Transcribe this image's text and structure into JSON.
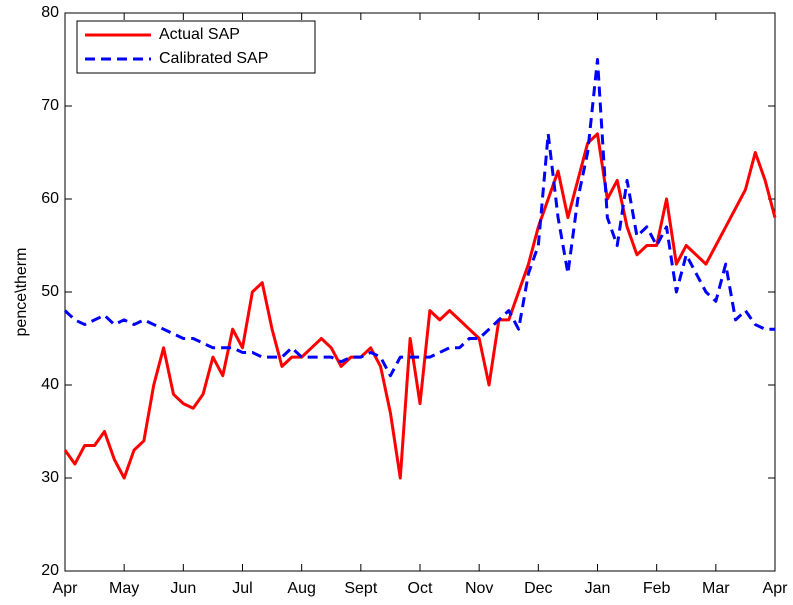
{
  "chart_data": {
    "type": "line",
    "ylabel": "pence\\therm",
    "categories": [
      "Apr",
      null,
      null,
      null,
      null,
      null,
      "May",
      null,
      null,
      null,
      null,
      null,
      "Jun",
      null,
      null,
      null,
      null,
      null,
      "Jul",
      null,
      null,
      null,
      null,
      null,
      "Aug",
      null,
      null,
      null,
      null,
      null,
      "Sept",
      null,
      null,
      null,
      null,
      null,
      "Oct",
      null,
      null,
      null,
      null,
      null,
      "Nov",
      null,
      null,
      null,
      null,
      null,
      "Dec",
      null,
      null,
      null,
      null,
      null,
      "Jan",
      null,
      null,
      null,
      null,
      null,
      "Feb",
      null,
      null,
      null,
      null,
      null,
      "Mar",
      null,
      null,
      null,
      null,
      null,
      "Apr"
    ],
    "series": [
      {
        "name": "Actual SAP",
        "color": "#ff0000",
        "dashed": false,
        "values": [
          33,
          31.5,
          33.5,
          33.5,
          35,
          32,
          30,
          33,
          34,
          40,
          44,
          39,
          38,
          37.5,
          39,
          43,
          41,
          46,
          44,
          50,
          51,
          46,
          42,
          43,
          43,
          44,
          45,
          44,
          42,
          43,
          43,
          44,
          42,
          37,
          30,
          45,
          38,
          48,
          47,
          48,
          47,
          46,
          45,
          40,
          47,
          47,
          50,
          53,
          57,
          60,
          63,
          58,
          62,
          66,
          67,
          60,
          62,
          57,
          54,
          55,
          55,
          60,
          53,
          55,
          54,
          53,
          55,
          57,
          59,
          61,
          65,
          62,
          58
        ]
      },
      {
        "name": "Calibrated SAP",
        "color": "#0000ff",
        "dashed": true,
        "values": [
          48,
          47,
          46.5,
          47,
          47.5,
          46.5,
          47,
          46.5,
          47,
          46.5,
          46,
          45.5,
          45,
          45,
          44.5,
          44,
          44,
          44,
          43.5,
          43.5,
          43,
          43,
          43,
          44,
          43,
          43,
          43,
          43,
          42.5,
          43,
          43,
          43.5,
          43,
          41,
          43,
          43,
          43,
          43,
          43.5,
          44,
          44,
          45,
          45,
          46,
          47,
          48,
          46,
          52,
          55,
          67,
          58,
          52,
          60,
          65,
          75,
          58,
          55,
          62,
          56,
          57,
          55,
          57,
          50,
          54,
          52,
          50,
          49,
          53,
          47,
          48,
          46.5,
          46,
          46
        ]
      }
    ],
    "ylim": [
      20,
      80
    ],
    "yticks": [
      20,
      30,
      40,
      50,
      60,
      70,
      80
    ],
    "legend": "top-left",
    "grid": false
  }
}
